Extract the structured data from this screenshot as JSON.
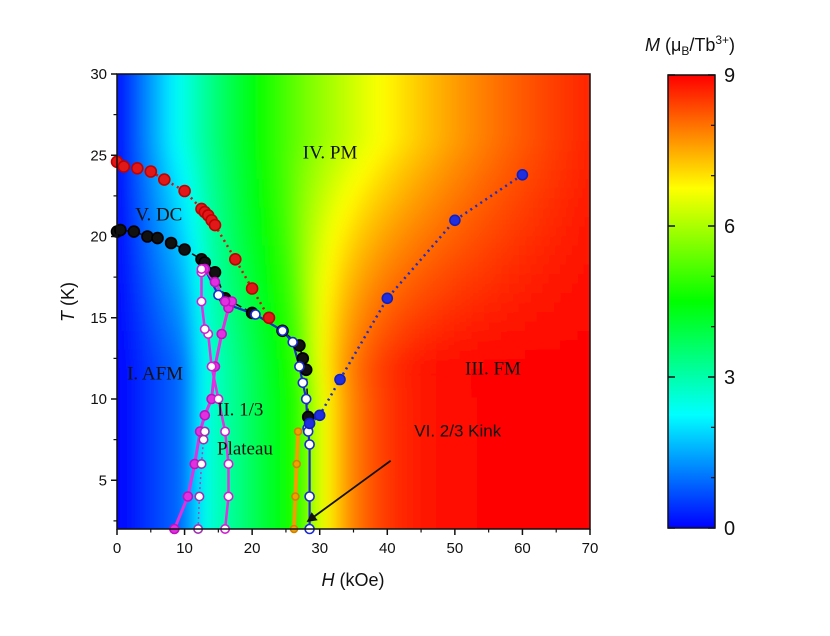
{
  "chart_data": {
    "type": "heatmap",
    "x": {
      "label_symbol": "H",
      "label_unit": " (kOe)",
      "range": [
        0,
        70
      ],
      "ticks": [
        0,
        10,
        20,
        30,
        40,
        50,
        60,
        70
      ],
      "tick_labels": [
        "0",
        "10",
        "20",
        "30",
        "40",
        "50",
        "60",
        "70"
      ]
    },
    "y": {
      "label_symbol": "T",
      "label_unit": " (K)",
      "range": [
        2,
        30
      ],
      "ticks": [
        5,
        10,
        15,
        20,
        25,
        30
      ],
      "tick_labels": [
        "5",
        "10",
        "15",
        "20",
        "25",
        "30"
      ]
    },
    "colorbar": {
      "title_symbol": "M",
      "title_open": " (μ",
      "title_sub": "B",
      "title_mid": "/Tb",
      "title_sup": "3+",
      "title_close": ")",
      "range": [
        0,
        9
      ],
      "ticks": [
        0,
        3,
        6,
        9
      ],
      "tick_labels": [
        "0",
        "3",
        "6",
        "9"
      ],
      "colors": [
        "#0000ff",
        "#0080ff",
        "#00ffff",
        "#00ff80",
        "#00ff00",
        "#80ff00",
        "#ffff00",
        "#ff8000",
        "#ff0000"
      ]
    },
    "regions": [
      {
        "label": "I. AFM",
        "h": 1.5,
        "t": 11.2
      },
      {
        "label": "II. 1/3",
        "h": 14.8,
        "t": 9.0
      },
      {
        "label": "Plateau",
        "h": 14.8,
        "t": 6.6
      },
      {
        "label": "III. FM",
        "h": 51.5,
        "t": 11.5
      },
      {
        "label": "IV. PM",
        "h": 27.5,
        "t": 24.8
      },
      {
        "label": "V. DC",
        "h": 2.7,
        "t": 21.0
      }
    ],
    "annotation": {
      "label": "VI. 2/3 Kink",
      "text_h": 44,
      "text_t": 7.7,
      "tail_h": 40.5,
      "tail_t": 6.2,
      "head_h": 28.3,
      "head_t": 2.5
    },
    "series": [
      {
        "style": "red-dotted",
        "h": [
          0,
          1,
          3,
          5,
          7,
          10,
          12.5,
          13,
          13.5,
          14,
          14.5,
          17.5,
          20,
          22.5
        ],
        "t": [
          24.6,
          24.3,
          24.2,
          24.0,
          23.5,
          22.8,
          21.7,
          21.5,
          21.3,
          21.0,
          20.7,
          18.6,
          16.8,
          15.0
        ]
      },
      {
        "style": "black-dashed",
        "h": [
          0,
          0.5,
          2.5,
          4.5,
          6,
          8,
          10,
          12.5,
          13,
          14.5,
          16,
          20,
          24.5,
          27,
          27.5,
          28,
          28.3
        ],
        "t": [
          20.3,
          20.4,
          20.3,
          20.0,
          19.9,
          19.6,
          19.2,
          18.6,
          18.4,
          17.8,
          16.2,
          15.3,
          14.2,
          13.3,
          12.5,
          11.8,
          8.9
        ]
      },
      {
        "style": "blue-solid-open",
        "h": [
          13,
          15,
          16.5,
          20.5,
          24.5,
          26,
          27,
          27.5,
          28,
          28.2,
          28.3,
          28.5,
          28.5,
          28.5
        ],
        "t": [
          18.0,
          16.4,
          15.8,
          15.2,
          14.2,
          13.5,
          12.0,
          11.0,
          10.0,
          8.2,
          8.0,
          7.2,
          4.0,
          2.0
        ]
      },
      {
        "style": "blue-dotted",
        "h": [
          28.5,
          30,
          33,
          40,
          50,
          60
        ],
        "t": [
          8.5,
          9.0,
          11.2,
          16.2,
          21.0,
          23.8
        ]
      },
      {
        "style": "magenta-solid",
        "h": [
          8.5,
          10.5,
          11.5,
          12.3,
          13,
          14,
          14.5,
          15.5,
          16.5,
          17,
          16,
          14.5,
          13
        ],
        "t": [
          2.0,
          4.0,
          6.0,
          8.0,
          9.0,
          10.0,
          12.0,
          14.0,
          15.6,
          16.0,
          16.0,
          17.2,
          18.0
        ]
      },
      {
        "style": "magenta-open",
        "h": [
          16,
          16.5,
          16.5,
          16,
          15,
          14,
          13.5,
          13,
          12.5,
          12.5,
          12.5
        ],
        "t": [
          2.0,
          4.0,
          6.0,
          8.0,
          10.0,
          12.0,
          14.0,
          14.3,
          16.0,
          17.8,
          18.0
        ]
      },
      {
        "style": "purple-open",
        "h": [
          12,
          12.2,
          12.5,
          12.8,
          13
        ],
        "t": [
          2.0,
          4.0,
          6.0,
          7.5,
          8.0
        ]
      },
      {
        "style": "orange-solid",
        "h": [
          26.2,
          26.4,
          26.6,
          26.8
        ],
        "t": [
          2.0,
          4.0,
          6.0,
          8.0
        ]
      }
    ]
  }
}
